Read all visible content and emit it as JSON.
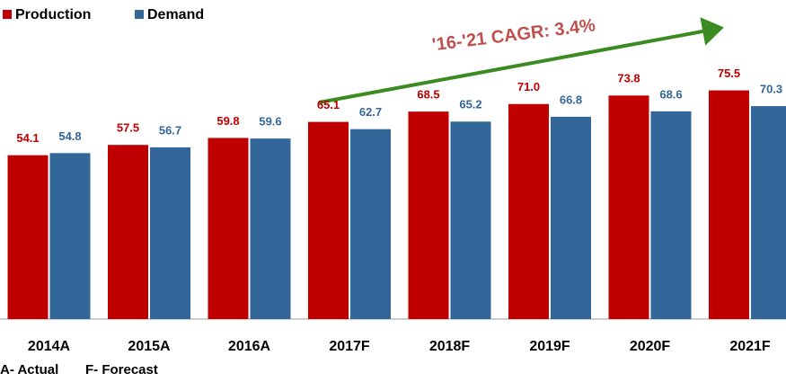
{
  "chart_data": {
    "type": "bar",
    "annotation": "'16-'21 CAGR: 3.4%",
    "notes": [
      "A- Actual",
      "F- Forecast"
    ],
    "categories": [
      "2014A",
      "2015A",
      "2016A",
      "2017F",
      "2018F",
      "2019F",
      "2020F",
      "2021F"
    ],
    "series": [
      {
        "name": "Production",
        "color": "#c00000",
        "values": [
          54.1,
          57.5,
          59.8,
          65.1,
          68.5,
          71.0,
          73.8,
          75.5
        ],
        "value_labels": [
          "54.1",
          "57.5",
          "59.8",
          "65.1",
          "68.5",
          "71.0",
          "73.8",
          "75.5"
        ]
      },
      {
        "name": "Demand",
        "color": "#336699",
        "values": [
          54.8,
          56.7,
          59.6,
          62.7,
          65.2,
          66.8,
          68.6,
          70.3
        ]
      }
    ],
    "legend": "top-left"
  }
}
